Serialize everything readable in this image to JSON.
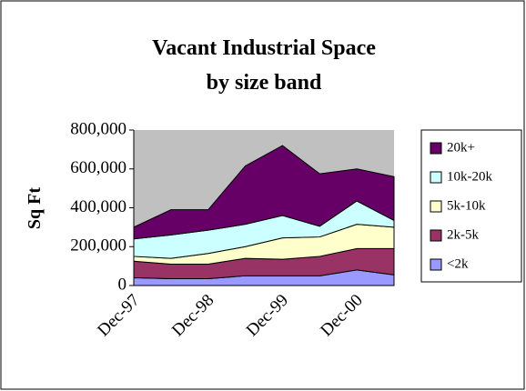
{
  "chart_data": {
    "type": "stacked-area",
    "title": [
      "Vacant Industrial Space",
      "by size band"
    ],
    "y_label": "Sq Ft",
    "categories": [
      "Dec-97",
      null,
      "Dec-98",
      null,
      "Dec-99",
      null,
      "Dec-00",
      null
    ],
    "series": [
      {
        "name": "<2k",
        "color": "#9999ff",
        "values": [
          40000,
          35000,
          35000,
          50000,
          50000,
          50000,
          80000,
          55000
        ]
      },
      {
        "name": "2k-5k",
        "color": "#993366",
        "values": [
          85000,
          75000,
          75000,
          90000,
          85000,
          100000,
          110000,
          135000
        ]
      },
      {
        "name": "5k-10k",
        "color": "#ffffcc",
        "values": [
          25000,
          30000,
          55000,
          60000,
          110000,
          100000,
          125000,
          110000
        ]
      },
      {
        "name": "10k-20k",
        "color": "#ccffff",
        "values": [
          90000,
          120000,
          120000,
          115000,
          115000,
          55000,
          120000,
          35000
        ]
      },
      {
        "name": "20k+",
        "color": "#660066",
        "values": [
          60000,
          130000,
          105000,
          300000,
          360000,
          270000,
          165000,
          225000
        ]
      }
    ],
    "ylim": [
      0,
      800000
    ],
    "yticks": [
      {
        "value": 0,
        "label": "0"
      },
      {
        "value": 200000,
        "label": "200,000"
      },
      {
        "value": 400000,
        "label": "400,000"
      },
      {
        "value": 600000,
        "label": "600,000"
      },
      {
        "value": 800000,
        "label": "800,000"
      }
    ],
    "plot_background": "#c0c0c0",
    "legend": "right"
  }
}
